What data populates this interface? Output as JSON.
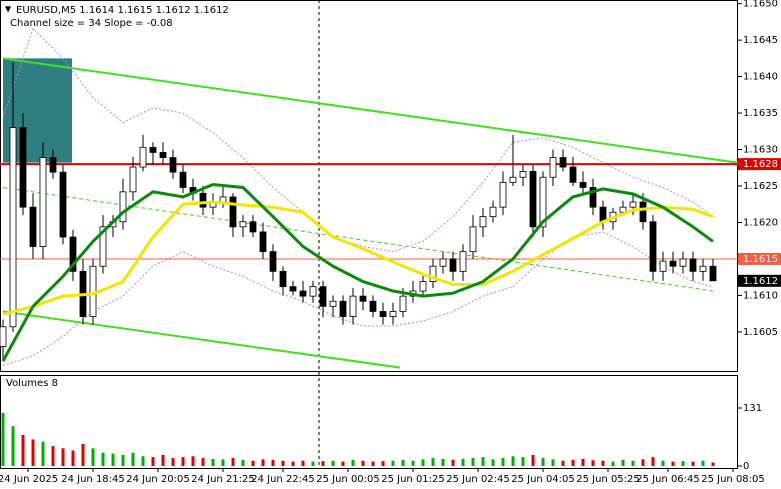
{
  "chart_data": {
    "type": "candlestick",
    "title": "EURUSD,M5  1.1614 1.1615 1.1612 1.1612",
    "subtitle": "Channel size = 34 Slope = -0.08",
    "xlim": [
      -0.3,
      73.5
    ],
    "ylim": [
      1.15995,
      1.16505
    ],
    "yticks": [
      {
        "value": 1.165,
        "label": "1.1650"
      },
      {
        "value": 1.1645,
        "label": "1.1645"
      },
      {
        "value": 1.164,
        "label": "1.1640"
      },
      {
        "value": 1.1635,
        "label": "1.1635"
      },
      {
        "value": 1.163,
        "label": "1.1630"
      },
      {
        "value": 1.1625,
        "label": "1.1625"
      },
      {
        "value": 1.162,
        "label": "1.1620"
      },
      {
        "value": 1.161,
        "label": "1.1610"
      },
      {
        "value": 1.1605,
        "label": "1.1605"
      }
    ],
    "xticks": [
      {
        "value": 2.5,
        "label": "24 Jun 2025"
      },
      {
        "value": 9,
        "label": "24 Jun 18:45"
      },
      {
        "value": 15.5,
        "label": "24 Jun 20:05"
      },
      {
        "value": 22,
        "label": "24 Jun 21:25"
      },
      {
        "value": 28,
        "label": "24 Jun 22:45"
      },
      {
        "value": 34.5,
        "label": "25 Jun 00:05"
      },
      {
        "value": 41,
        "label": "25 Jun 01:25"
      },
      {
        "value": 47.5,
        "label": "25 Jun 02:45"
      },
      {
        "value": 54,
        "label": "25 Jun 04:05"
      },
      {
        "value": 60.5,
        "label": "25 Jun 05:25"
      },
      {
        "value": 66.5,
        "label": "25 Jun 06:45"
      },
      {
        "value": 73,
        "label": "25 Jun 08:05"
      }
    ],
    "open": [
      1.1603,
      1.16057,
      1.1633,
      1.16221,
      1.16167,
      1.16289,
      1.16269,
      1.1618,
      1.16133,
      1.16071,
      1.1614,
      1.16194,
      1.16201,
      1.16242,
      1.16276,
      1.16303,
      1.16296,
      1.16289,
      1.16269,
      1.16248,
      1.1624,
      1.16221,
      1.16228,
      1.16235,
      1.16194,
      1.16201,
      1.16187,
      1.1616,
      1.16133,
      1.16112,
      1.16106,
      1.16099,
      1.16112,
      1.16085,
      1.16092,
      1.16071,
      1.16099,
      1.16092,
      1.16078,
      1.16071,
      1.16078,
      1.16099,
      1.16106,
      1.16119,
      1.1614,
      1.1615,
      1.16133,
      1.1616,
      1.16194,
      1.16208,
      1.16221,
      1.16255,
      1.16262,
      1.1627,
      1.16194,
      1.16262,
      1.16289,
      1.16276,
      1.16255,
      1.16248,
      1.16221,
      1.16201,
      1.16214,
      1.16221,
      1.16228,
      1.16201,
      1.16133,
      1.16147,
      1.1614,
      1.1615,
      1.16133,
      1.1614
    ],
    "high": [
      1.16067,
      1.1642,
      1.1635,
      1.1624,
      1.1631,
      1.163,
      1.1628,
      1.1619,
      1.1615,
      1.1615,
      1.1621,
      1.1621,
      1.1626,
      1.1629,
      1.1632,
      1.1631,
      1.1631,
      1.163,
      1.1628,
      1.1626,
      1.1625,
      1.1624,
      1.1625,
      1.1624,
      1.1621,
      1.1621,
      1.162,
      1.1617,
      1.1614,
      1.1612,
      1.1612,
      1.1612,
      1.1612,
      1.161,
      1.161,
      1.1611,
      1.1611,
      1.161,
      1.1609,
      1.1609,
      1.1611,
      1.1612,
      1.1613,
      1.1615,
      1.1616,
      1.1616,
      1.1617,
      1.1621,
      1.1622,
      1.1623,
      1.1627,
      1.1632,
      1.1628,
      1.1628,
      1.1627,
      1.163,
      1.163,
      1.1629,
      1.1627,
      1.1626,
      1.1623,
      1.1622,
      1.1623,
      1.1624,
      1.1624,
      1.1621,
      1.1616,
      1.1616,
      1.1616,
      1.1616,
      1.1615,
      1.1615
    ],
    "low": [
      1.1601,
      1.1605,
      1.1621,
      1.1615,
      1.1615,
      1.1626,
      1.1617,
      1.1612,
      1.1606,
      1.1606,
      1.1613,
      1.1618,
      1.1619,
      1.1623,
      1.1627,
      1.1628,
      1.1628,
      1.1626,
      1.1624,
      1.1623,
      1.1621,
      1.1621,
      1.1622,
      1.1618,
      1.1618,
      1.1618,
      1.1615,
      1.1612,
      1.161,
      1.161,
      1.1609,
      1.1609,
      1.1607,
      1.1607,
      1.1606,
      1.1606,
      1.1608,
      1.1607,
      1.1606,
      1.1606,
      1.1607,
      1.1609,
      1.161,
      1.1611,
      1.1613,
      1.1612,
      1.1612,
      1.1615,
      1.1618,
      1.162,
      1.1621,
      1.1625,
      1.1625,
      1.1618,
      1.1618,
      1.1625,
      1.1627,
      1.1625,
      1.1624,
      1.1621,
      1.1619,
      1.1619,
      1.1621,
      1.1621,
      1.1619,
      1.1612,
      1.1612,
      1.1613,
      1.1613,
      1.1612,
      1.1612,
      1.1612
    ],
    "close": [
      1.16057,
      1.1633,
      1.16221,
      1.16167,
      1.16289,
      1.16269,
      1.1618,
      1.16133,
      1.16071,
      1.1614,
      1.16194,
      1.16201,
      1.16242,
      1.16276,
      1.16303,
      1.16296,
      1.16289,
      1.16269,
      1.16248,
      1.1624,
      1.16221,
      1.16228,
      1.16235,
      1.16194,
      1.16201,
      1.16187,
      1.1616,
      1.16133,
      1.16112,
      1.16106,
      1.16099,
      1.16112,
      1.16085,
      1.16092,
      1.16071,
      1.16099,
      1.16092,
      1.16078,
      1.16071,
      1.16078,
      1.16099,
      1.16106,
      1.16119,
      1.1614,
      1.1615,
      1.16133,
      1.1616,
      1.16194,
      1.16208,
      1.16221,
      1.16255,
      1.16262,
      1.1627,
      1.16194,
      1.16262,
      1.16289,
      1.16276,
      1.16255,
      1.16248,
      1.16221,
      1.16201,
      1.16214,
      1.16221,
      1.16228,
      1.16201,
      1.16133,
      1.16147,
      1.1614,
      1.1615,
      1.16133,
      1.1614,
      1.1612
    ],
    "volume": [
      120,
      90,
      70,
      60,
      55,
      45,
      40,
      35,
      50,
      40,
      30,
      28,
      25,
      30,
      22,
      20,
      25,
      18,
      20,
      22,
      18,
      16,
      15,
      18,
      14,
      12,
      15,
      14,
      12,
      10,
      12,
      10,
      11,
      12,
      10,
      14,
      12,
      10,
      11,
      12,
      14,
      12,
      15,
      18,
      16,
      14,
      16,
      18,
      20,
      15,
      18,
      22,
      20,
      25,
      18,
      15,
      12,
      14,
      16,
      13,
      12,
      10,
      14,
      12,
      15,
      20,
      12,
      10,
      11,
      10,
      12,
      8
    ],
    "volume_panel": {
      "label": "Volumes 8",
      "ylim": [
        0,
        131
      ],
      "yticks": [
        0,
        131
      ],
      "up_color": "#00b000",
      "down_color": "#e00000"
    },
    "indicator_x": [
      0,
      3,
      6,
      9,
      12,
      15,
      18,
      21,
      24,
      27,
      30,
      33,
      36,
      39,
      42,
      45,
      48,
      51,
      54,
      57,
      60,
      63,
      66,
      69,
      71
    ],
    "moving_averages": [
      {
        "color": "#f2e600",
        "values": [
          1.16074,
          1.16085,
          1.16099,
          1.16102,
          1.16119,
          1.1618,
          1.16225,
          1.16228,
          1.16224,
          1.16221,
          1.16214,
          1.1618,
          1.16164,
          1.16146,
          1.16129,
          1.16115,
          1.16115,
          1.16133,
          1.16156,
          1.16178,
          1.16201,
          1.16217,
          1.16221,
          1.16218,
          1.16208
        ]
      },
      {
        "color": "#0a8a0a",
        "values": [
          1.1601,
          1.16085,
          1.16126,
          1.16174,
          1.16214,
          1.16242,
          1.16235,
          1.16252,
          1.16248,
          1.16208,
          1.16167,
          1.1614,
          1.16119,
          1.16106,
          1.16099,
          1.16103,
          1.16119,
          1.1615,
          1.16201,
          1.16235,
          1.16246,
          1.16239,
          1.16221,
          1.16194,
          1.16174
        ]
      }
    ],
    "bands": {
      "color": "#c080e0",
      "upper": [
        1.16344,
        1.16466,
        1.16425,
        1.16371,
        1.16337,
        1.16357,
        1.1635,
        1.16323,
        1.16289,
        1.16248,
        1.16214,
        1.1618,
        1.16167,
        1.1616,
        1.16174,
        1.16208,
        1.16255,
        1.1631,
        1.16316,
        1.16303,
        1.16282,
        1.16262,
        1.16248,
        1.16228,
        1.16208
      ],
      "lower": [
        1.16004,
        1.16017,
        1.16044,
        1.16078,
        1.16099,
        1.1614,
        1.1616,
        1.1614,
        1.16126,
        1.16106,
        1.16092,
        1.16072,
        1.16058,
        1.16058,
        1.16065,
        1.16078,
        1.16099,
        1.16112,
        1.1615,
        1.1618,
        1.16187,
        1.16167,
        1.1614,
        1.16119,
        1.16112
      ]
    },
    "channel_lines": [
      {
        "color": "#44dd22",
        "dashed": false,
        "x": [
          0,
          73.5
        ],
        "values": [
          1.16425,
          1.16282
        ]
      },
      {
        "color": "#44dd22",
        "dashed": false,
        "x": [
          0,
          39.7
        ],
        "values": [
          1.16078,
          1.16001
        ]
      },
      {
        "color": "#44cc22",
        "dashed": true,
        "x": [
          0,
          71
        ],
        "values": [
          1.16248,
          1.16106
        ]
      }
    ],
    "zone": {
      "color": "#2f7f80",
      "x": [
        0,
        6.9
      ],
      "y": [
        1.16282,
        1.16425
      ]
    },
    "vline": 31.6,
    "levels": [
      {
        "price": 1.1628,
        "color": "#e00000",
        "width": 2
      },
      {
        "price": 1.1615,
        "color": "#f06040",
        "width": 1
      }
    ],
    "last_price": 1.1612
  }
}
